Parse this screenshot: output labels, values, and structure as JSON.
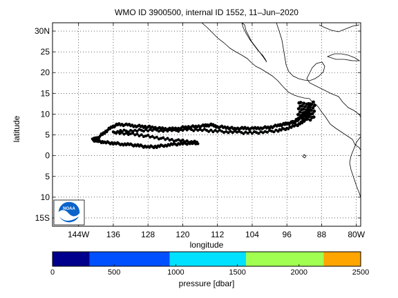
{
  "title": "WMO ID 3900500, internal ID 1552, 11–Jun–2020",
  "xlabel": "longitude",
  "ylabel": "latitude",
  "lat_ticks": [
    "30N",
    "25",
    "20",
    "15",
    "10",
    "5",
    "0",
    "5",
    "10",
    "15S"
  ],
  "lat_values": [
    30,
    25,
    20,
    15,
    10,
    5,
    0,
    -5,
    -10,
    -15
  ],
  "lon_ticks": [
    "144W",
    "136",
    "128",
    "120",
    "112",
    "104",
    "96",
    "88",
    "80W"
  ],
  "lon_values": [
    -144,
    -136,
    -128,
    -120,
    -112,
    -104,
    -96,
    -88,
    -80
  ],
  "logo": {
    "text": "NOAA",
    "name": "noaa-logo"
  },
  "colorbar": {
    "label": "pressure [dbar]",
    "ticks": [
      "0",
      "500",
      "1000",
      "1500",
      "2000",
      "2500"
    ],
    "tick_values": [
      0,
      500,
      1000,
      1500,
      2000,
      2500
    ],
    "range": [
      0,
      2500
    ],
    "segments": [
      {
        "from": 0,
        "to": 300,
        "color": "#00008c"
      },
      {
        "from": 300,
        "to": 950,
        "color": "#0050ff"
      },
      {
        "from": 950,
        "to": 1570,
        "color": "#00e1ff"
      },
      {
        "from": 1570,
        "to": 2200,
        "color": "#a0ff50"
      },
      {
        "from": 2200,
        "to": 2500,
        "color": "#ffa500"
      }
    ]
  },
  "chart_data": {
    "type": "scatter",
    "xlim": [
      -150,
      -79
    ],
    "ylim": [
      -17,
      32
    ],
    "grid": true,
    "trajectory_color": "#000000",
    "segment_color": "#00e1ff",
    "trajectory": [
      [
        -90.5,
        12.5
      ],
      [
        -91.0,
        11.8
      ],
      [
        -90.8,
        11.0
      ],
      [
        -91.2,
        10.2
      ],
      [
        -92.5,
        9.6
      ],
      [
        -93.5,
        8.8
      ],
      [
        -94.2,
        8.2
      ],
      [
        -95.0,
        7.9
      ],
      [
        -96.5,
        7.6
      ],
      [
        -98.0,
        7.3
      ],
      [
        -100.0,
        6.8
      ],
      [
        -102.0,
        6.7
      ],
      [
        -104.0,
        6.5
      ],
      [
        -106.0,
        6.6
      ],
      [
        -108.0,
        6.5
      ],
      [
        -110.0,
        6.8
      ],
      [
        -112.0,
        7.0
      ],
      [
        -113.5,
        7.4
      ],
      [
        -115.0,
        7.2
      ],
      [
        -117.0,
        7.0
      ],
      [
        -119.0,
        6.9
      ],
      [
        -121.0,
        6.6
      ],
      [
        -123.0,
        6.4
      ],
      [
        -125.0,
        6.5
      ],
      [
        -127.0,
        6.8
      ],
      [
        -129.0,
        7.0
      ],
      [
        -131.0,
        7.2
      ],
      [
        -133.0,
        7.4
      ],
      [
        -135.0,
        7.5
      ],
      [
        -136.5,
        6.8
      ],
      [
        -138.0,
        5.6
      ],
      [
        -139.5,
        4.4
      ],
      [
        -140.8,
        3.8
      ],
      [
        -139.5,
        3.5
      ],
      [
        -138.0,
        3.2
      ],
      [
        -136.0,
        3.0
      ],
      [
        -134.0,
        2.8
      ],
      [
        -132.0,
        2.6
      ],
      [
        -130.0,
        2.4
      ],
      [
        -128.0,
        2.1
      ],
      [
        -126.0,
        2.2
      ],
      [
        -124.0,
        2.5
      ],
      [
        -122.0,
        2.7
      ],
      [
        -120.0,
        2.9
      ],
      [
        -118.0,
        3.0
      ],
      [
        -116.5,
        3.1
      ],
      [
        -118.0,
        3.4
      ],
      [
        -121.0,
        3.6
      ],
      [
        -124.0,
        4.0
      ],
      [
        -127.0,
        4.5
      ],
      [
        -130.0,
        5.0
      ],
      [
        -133.0,
        5.4
      ],
      [
        -136.0,
        5.5
      ],
      [
        -134.0,
        5.9
      ],
      [
        -131.0,
        6.0
      ],
      [
        -128.0,
        6.2
      ],
      [
        -125.0,
        6.1
      ],
      [
        -122.0,
        6.0
      ],
      [
        -119.0,
        6.3
      ],
      [
        -116.0,
        6.2
      ],
      [
        -113.0,
        6.0
      ],
      [
        -110.0,
        5.8
      ],
      [
        -107.0,
        5.6
      ],
      [
        -104.0,
        5.5
      ],
      [
        -101.0,
        5.7
      ],
      [
        -98.0,
        6.1
      ],
      [
        -96.0,
        6.6
      ],
      [
        -94.0,
        7.2
      ],
      [
        -92.5,
        8.0
      ],
      [
        -91.5,
        9.0
      ],
      [
        -90.5,
        10.0
      ]
    ]
  }
}
